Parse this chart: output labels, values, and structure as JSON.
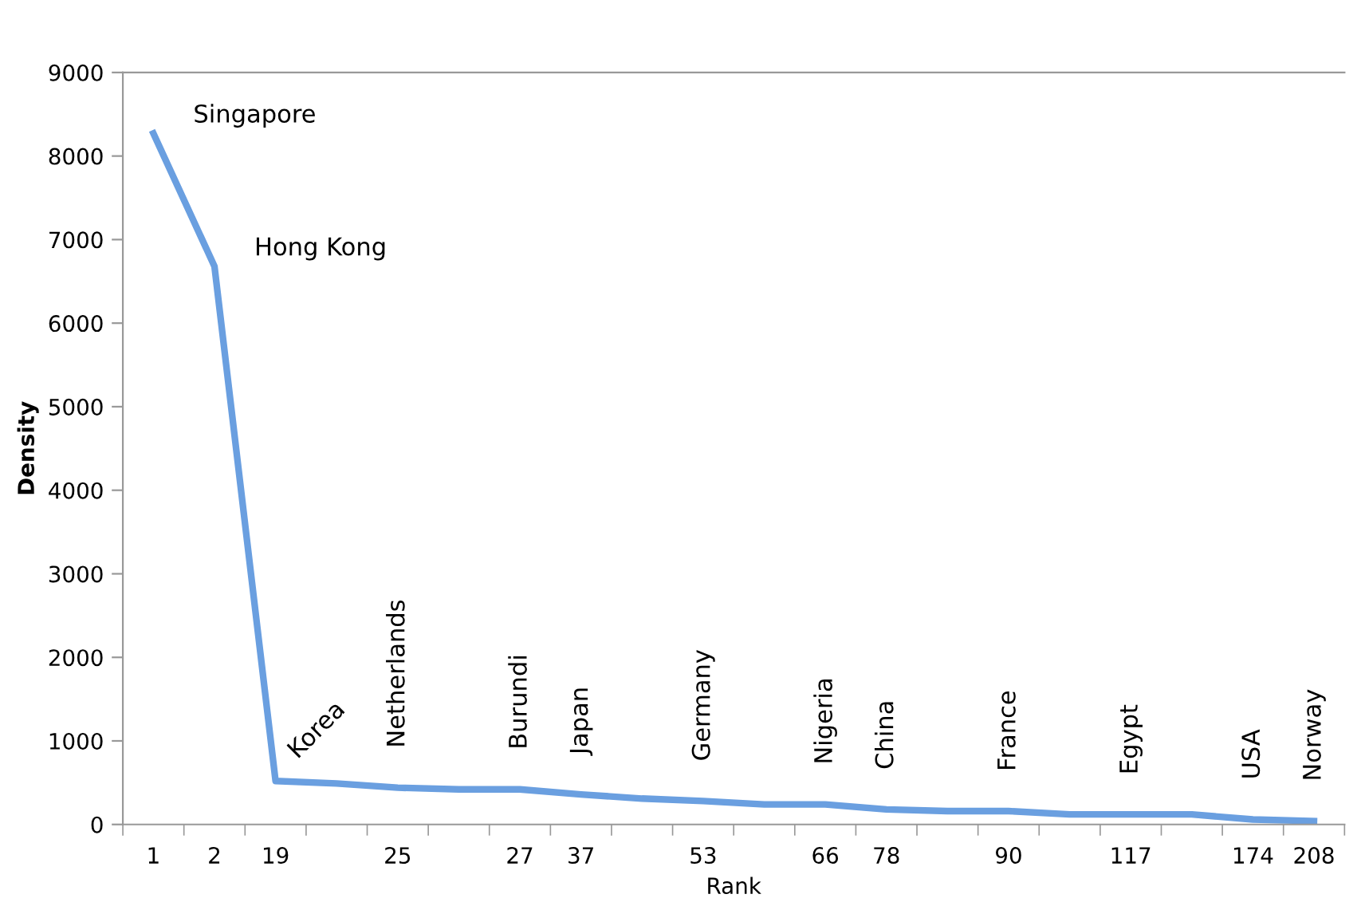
{
  "chart_data": {
    "type": "line",
    "xlabel": "Rank",
    "ylabel": "Density",
    "categories": [
      "1",
      "2",
      "19",
      null,
      "25",
      null,
      "27",
      "37",
      null,
      "53",
      null,
      "66",
      "78",
      null,
      "90",
      null,
      "117",
      null,
      "174",
      "208"
    ],
    "series": [
      {
        "color": "#6a9fe0",
        "values": [
          8270,
          6680,
          520,
          490,
          440,
          420,
          420,
          360,
          310,
          280,
          240,
          240,
          180,
          160,
          160,
          120,
          120,
          120,
          60,
          40
        ]
      }
    ],
    "ylim": [
      0,
      9000
    ],
    "yticks": [
      0,
      1000,
      2000,
      3000,
      4000,
      5000,
      6000,
      7000,
      8000,
      9000
    ],
    "grid": false,
    "marker": "none",
    "line_style": "solid",
    "annotations": [
      {
        "text": "Singapore",
        "x": "1",
        "y": 8270
      },
      {
        "text": "Hong Kong",
        "x": "2",
        "y": 6680
      },
      {
        "text": "Korea",
        "x": "19",
        "y": 520
      },
      {
        "text": "Netherlands",
        "x": "25",
        "y": 440
      },
      {
        "text": "Burundi",
        "x": "27",
        "y": 420
      },
      {
        "text": "Japan",
        "x": "37",
        "y": 360
      },
      {
        "text": "Germany",
        "x": "53",
        "y": 280
      },
      {
        "text": "Nigeria",
        "x": "66",
        "y": 240
      },
      {
        "text": "China",
        "x": "78",
        "y": 180
      },
      {
        "text": "France",
        "x": "90",
        "y": 160
      },
      {
        "text": "Egypt",
        "x": "117",
        "y": 120
      },
      {
        "text": "USA",
        "x": "174",
        "y": 60
      },
      {
        "text": "Norway",
        "x": "208",
        "y": 40
      }
    ]
  }
}
